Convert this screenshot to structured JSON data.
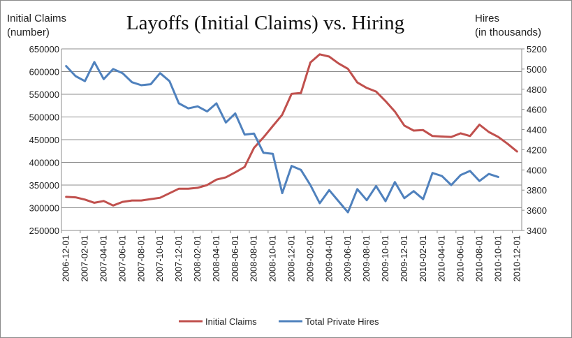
{
  "chart_data": {
    "type": "line",
    "title": "Layoffs (Initial Claims) vs. Hiring",
    "left_axis_label": [
      "Initial Claims",
      "(number)"
    ],
    "right_axis_label": [
      "Hires",
      "(in thousands)"
    ],
    "left_ylim": [
      250000,
      650000
    ],
    "right_ylim": [
      3400,
      5200
    ],
    "left_ticks": [
      "250000",
      "300000",
      "350000",
      "400000",
      "450000",
      "500000",
      "550000",
      "600000",
      "650000"
    ],
    "right_ticks": [
      "3400",
      "3600",
      "3800",
      "4000",
      "4200",
      "4400",
      "4600",
      "4800",
      "5000",
      "5200"
    ],
    "x_tick_labels": [
      "2006-12-01",
      "2007-02-01",
      "2007-04-01",
      "2007-06-01",
      "2007-08-01",
      "2007-10-01",
      "2007-12-01",
      "2008-02-01",
      "2008-04-01",
      "2008-06-01",
      "2008-08-01",
      "2008-10-01",
      "2008-12-01",
      "2009-02-01",
      "2009-04-01",
      "2009-06-01",
      "2009-08-01",
      "2009-10-01",
      "2009-12-01",
      "2010-02-01",
      "2010-04-01",
      "2010-06-01",
      "2010-08-01",
      "2010-10-01",
      "2010-12-01"
    ],
    "x": [
      "2006-12",
      "2007-01",
      "2007-02",
      "2007-03",
      "2007-04",
      "2007-05",
      "2007-06",
      "2007-07",
      "2007-08",
      "2007-09",
      "2007-10",
      "2007-11",
      "2007-12",
      "2008-01",
      "2008-02",
      "2008-03",
      "2008-04",
      "2008-05",
      "2008-06",
      "2008-07",
      "2008-08",
      "2008-09",
      "2008-10",
      "2008-11",
      "2008-12",
      "2009-01",
      "2009-02",
      "2009-03",
      "2009-04",
      "2009-05",
      "2009-06",
      "2009-07",
      "2009-08",
      "2009-09",
      "2009-10",
      "2009-11",
      "2009-12",
      "2010-01",
      "2010-02",
      "2010-03",
      "2010-04",
      "2010-05",
      "2010-06",
      "2010-07",
      "2010-08",
      "2010-09",
      "2010-10",
      "2010-11",
      "2010-12"
    ],
    "grid": true,
    "legend_position": "bottom",
    "series": [
      {
        "name": "Initial Claims",
        "axis": "left",
        "color": "#c0504d",
        "values": [
          324000,
          323000,
          318000,
          311000,
          315000,
          305000,
          313000,
          316000,
          316000,
          319000,
          322000,
          332000,
          342000,
          342000,
          344000,
          350000,
          362000,
          367000,
          378000,
          390000,
          432000,
          455000,
          480000,
          505000,
          551000,
          553000,
          620000,
          638000,
          633000,
          618000,
          606000,
          576000,
          564000,
          556000,
          535000,
          512000,
          481000,
          470000,
          471000,
          458000,
          457000,
          456000,
          464000,
          458000,
          483000,
          467000,
          456000,
          441000,
          424000
        ]
      },
      {
        "name": "Total Private Hires",
        "axis": "right",
        "color": "#4f81bd",
        "values": [
          5030,
          4930,
          4880,
          5070,
          4900,
          5000,
          4960,
          4870,
          4840,
          4850,
          4960,
          4880,
          4660,
          4610,
          4630,
          4580,
          4660,
          4470,
          4560,
          4350,
          4360,
          4170,
          4160,
          3770,
          4040,
          4000,
          3850,
          3670,
          3800,
          3690,
          3580,
          3810,
          3700,
          3840,
          3690,
          3880,
          3720,
          3790,
          3710,
          3970,
          3940,
          3850,
          3950,
          3990,
          3890,
          3960,
          3930,
          null,
          null
        ]
      }
    ]
  }
}
